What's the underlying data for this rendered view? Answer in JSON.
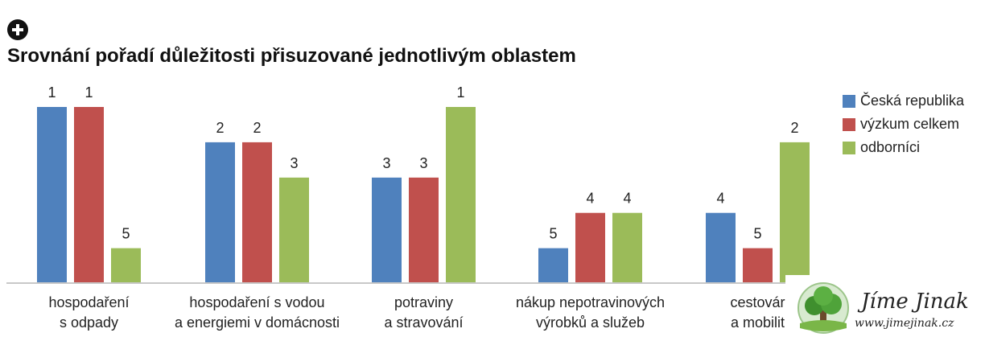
{
  "header": {
    "icon": "plus-circle-icon",
    "title": "Srovnání pořadí důležitosti přisuzované jednotlivým oblastem"
  },
  "chart_data": {
    "type": "bar",
    "title": "Srovnání pořadí důležitosti přisuzované jednotlivým oblastem",
    "categories": [
      [
        "hospodaření",
        "s odpady"
      ],
      [
        "hospodaření s vodou",
        "a energiemi v domácnosti"
      ],
      [
        "potraviny",
        "a stravování"
      ],
      [
        "nákup nepotravinových",
        "výrobků a služeb"
      ],
      [
        "cestovár",
        "a mobilit"
      ]
    ],
    "series": [
      {
        "name": "Česká republika",
        "color": "#4f81bd",
        "values": [
          1,
          2,
          3,
          5,
          4
        ]
      },
      {
        "name": "výzkum celkem",
        "color": "#c0504d",
        "values": [
          1,
          2,
          3,
          4,
          5
        ]
      },
      {
        "name": "odborníci",
        "color": "#9bbb59",
        "values": [
          5,
          3,
          1,
          4,
          2
        ]
      }
    ],
    "value_meaning": "rank (1 = most important, tallest bar)",
    "rank_range": [
      1,
      5
    ],
    "legend_position": "right",
    "grid": false
  },
  "logo": {
    "name": "Jíme Jinak",
    "url": "www.jimejinak.cz",
    "icon": "tree-icon"
  }
}
